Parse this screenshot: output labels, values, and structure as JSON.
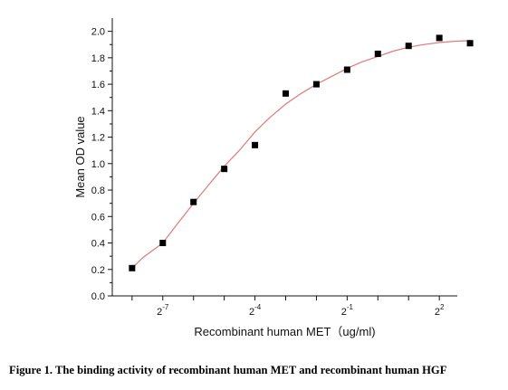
{
  "chart_data": {
    "type": "scatter",
    "title": "",
    "xlabel": "Recombinant human MET（ug/ml)",
    "ylabel": "Mean OD value",
    "x_scale": "log2",
    "xlim": [
      0.0025,
      6.0
    ],
    "ylim": [
      0.0,
      2.1
    ],
    "x_ticks": [
      {
        "value": 0.0078125,
        "base": "2",
        "exp": "-7"
      },
      {
        "value": 0.0625,
        "base": "2",
        "exp": "-4"
      },
      {
        "value": 0.5,
        "base": "2",
        "exp": "-1"
      },
      {
        "value": 4,
        "base": "2",
        "exp": "2"
      }
    ],
    "y_ticks": [
      "0.0",
      "0.2",
      "0.4",
      "0.6",
      "0.8",
      "1.0",
      "1.2",
      "1.4",
      "1.6",
      "1.8",
      "2.0"
    ],
    "grid": false,
    "series": [
      {
        "type": "scatter",
        "marker": "square",
        "color": "#000000",
        "x": [
          0.003906,
          0.007813,
          0.015625,
          0.03125,
          0.0625,
          0.125,
          0.25,
          0.5,
          1,
          2,
          4,
          8
        ],
        "y": [
          0.21,
          0.4,
          0.71,
          0.96,
          1.14,
          1.53,
          1.6,
          1.71,
          1.83,
          1.89,
          1.95,
          1.91
        ]
      },
      {
        "type": "line",
        "role": "fitted curve",
        "color": "#e07a7a",
        "x": [
          0.003906,
          0.005,
          0.007813,
          0.011,
          0.015625,
          0.022,
          0.03125,
          0.044,
          0.0625,
          0.088,
          0.125,
          0.177,
          0.25,
          0.354,
          0.5,
          0.707,
          1,
          1.414,
          2,
          2.83,
          4,
          5.66,
          8
        ],
        "y": [
          0.21,
          0.29,
          0.4,
          0.55,
          0.7,
          0.84,
          0.98,
          1.1,
          1.24,
          1.35,
          1.45,
          1.53,
          1.6,
          1.66,
          1.72,
          1.77,
          1.81,
          1.85,
          1.88,
          1.9,
          1.915,
          1.925,
          1.93
        ]
      }
    ]
  },
  "figure": {
    "caption": "Figure 1. The binding activity of recombinant human MET and recombinant human HGF"
  }
}
